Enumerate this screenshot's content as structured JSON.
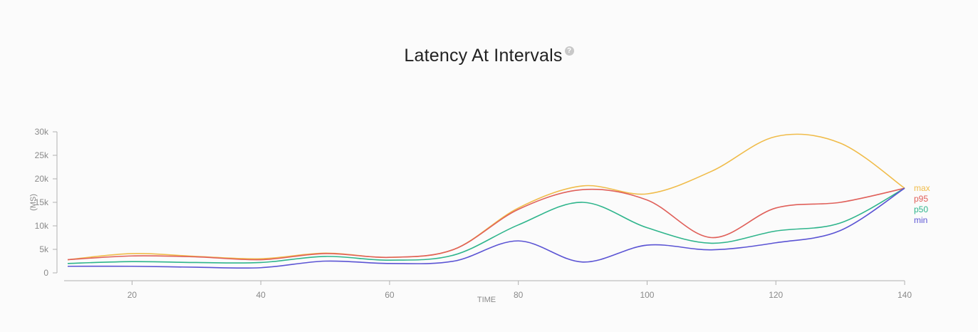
{
  "title": "Latency At Intervals",
  "help_icon": "question-circle-icon",
  "chart_data": {
    "type": "line",
    "title": "Latency At Intervals",
    "xlabel": "TIME",
    "ylabel": "(MS)",
    "xlim": [
      10,
      140
    ],
    "ylim": [
      0,
      30000
    ],
    "x_ticks": [
      20,
      40,
      60,
      80,
      100,
      120,
      140
    ],
    "x_tick_labels": [
      "20",
      "40",
      "60",
      "80",
      "100",
      "120",
      "140"
    ],
    "y_ticks": [
      0,
      5000,
      10000,
      15000,
      20000,
      25000,
      30000
    ],
    "y_tick_labels": [
      "0",
      "5k",
      "10k",
      "15k",
      "20k",
      "25k",
      "30k"
    ],
    "grid": false,
    "legend_position": "right-end-labels",
    "x": [
      10,
      20,
      30,
      40,
      50,
      60,
      70,
      80,
      90,
      100,
      110,
      120,
      130,
      140
    ],
    "series": [
      {
        "name": "max",
        "color": "#f0bc4a",
        "values": [
          2800,
          4100,
          3500,
          3000,
          4200,
          3300,
          5000,
          13800,
          18500,
          16800,
          21600,
          29000,
          27600,
          18000
        ]
      },
      {
        "name": "p95",
        "color": "#e0605a",
        "values": [
          2800,
          3600,
          3400,
          2800,
          4100,
          3300,
          5000,
          13500,
          17700,
          15500,
          7500,
          13800,
          15000,
          18000
        ]
      },
      {
        "name": "p50",
        "color": "#2fb58c",
        "values": [
          2000,
          2400,
          2200,
          2200,
          3500,
          2700,
          3800,
          10200,
          15000,
          9600,
          6300,
          8900,
          10600,
          18000
        ]
      },
      {
        "name": "min",
        "color": "#5b54d4",
        "values": [
          1400,
          1400,
          1200,
          1100,
          2500,
          2000,
          2500,
          6800,
          2300,
          5900,
          4900,
          6400,
          9000,
          18000
        ]
      }
    ]
  }
}
